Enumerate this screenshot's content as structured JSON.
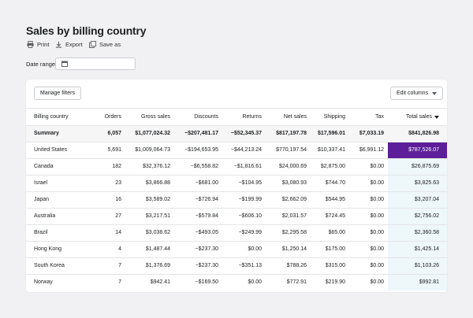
{
  "header": {
    "title": "Sales by billing country"
  },
  "actions": [
    "Print",
    "Export",
    "Save as"
  ],
  "date_range": {
    "label": "Date range"
  },
  "buttons": {
    "manage_filters": "Manage filters",
    "edit_columns": "Edit columns"
  },
  "table": {
    "columns": [
      "Billing country",
      "Orders",
      "Gross sales",
      "Discounts",
      "Returns",
      "Net sales",
      "Shipping",
      "Tax",
      "Total sales"
    ],
    "summary": [
      "Summary",
      "6,057",
      "$1,077,024.32",
      "−$207,481.17",
      "−$52,345.37",
      "$817,197.78",
      "$17,596.01",
      "$7,033.19",
      "$841,826.98"
    ],
    "rows": [
      [
        "United States",
        "5,691",
        "$1,009,064.73",
        "−$194,653.95",
        "−$44,213.24",
        "$770,197.54",
        "$10,337.41",
        "$6,991.12",
        "$787,526.07"
      ],
      [
        "Canada",
        "182",
        "$32,376.12",
        "−$6,558.82",
        "−$1,816.61",
        "$24,000.69",
        "$2,875.00",
        "$0.00",
        "$26,875.69"
      ],
      [
        "Israel",
        "23",
        "$3,866.88",
        "−$681.00",
        "−$104.95",
        "$3,080.93",
        "$744.70",
        "$0.00",
        "$3,825.63"
      ],
      [
        "Japan",
        "16",
        "$3,589.02",
        "−$726.94",
        "−$199.99",
        "$2,662.09",
        "$544.95",
        "$0.00",
        "$3,207.04"
      ],
      [
        "Australia",
        "27",
        "$3,217.51",
        "−$579.84",
        "−$606.10",
        "$2,031.57",
        "$724.45",
        "$0.00",
        "$2,756.02"
      ],
      [
        "Brazil",
        "14",
        "$3,038.62",
        "−$493.05",
        "−$249.99",
        "$2,295.58",
        "$65.00",
        "$0.00",
        "$2,360.58"
      ],
      [
        "Hong Kong",
        "4",
        "$1,487.44",
        "−$237.30",
        "$0.00",
        "$1,250.14",
        "$175.00",
        "$0.00",
        "$1,425.14"
      ],
      [
        "South Korea",
        "7",
        "$1,376.69",
        "−$237.30",
        "−$351.13",
        "$788.26",
        "$315.00",
        "$0.00",
        "$1,103.26"
      ],
      [
        "Norway",
        "7",
        "$942.41",
        "−$169.50",
        "$0.00",
        "$772.91",
        "$219.90",
        "$0.00",
        "$992.81"
      ]
    ]
  }
}
